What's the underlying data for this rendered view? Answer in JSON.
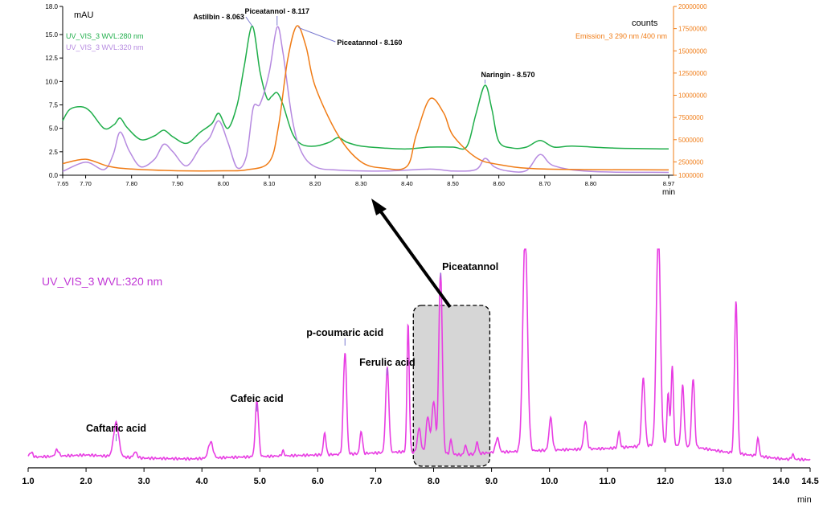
{
  "colors": {
    "green": "#1fae4a",
    "violet": "#b68ae0",
    "orange": "#f07c16",
    "magenta": "#e83ee3",
    "axis": "#000000",
    "selection_fill": "#d6d6d6"
  },
  "chart_data": [
    {
      "type": "line",
      "panel": "zoom",
      "xlim": [
        7.65,
        8.97
      ],
      "ylim": [
        0,
        18
      ],
      "y2lim": [
        1000000,
        20000000
      ],
      "x_ticks": [
        "7.65",
        "7.70",
        "7.80",
        "7.90",
        "8.00",
        "8.10",
        "8.20",
        "8.30",
        "8.40",
        "8.50",
        "8.60",
        "8.70",
        "8.80",
        "8.97"
      ],
      "y_ticks": [
        "0.0",
        "2.5",
        "5.0",
        "7.5",
        "10.0",
        "12.5",
        "15.0",
        "18.0"
      ],
      "y2_ticks": [
        "1000000",
        "2500000",
        "5000000",
        "7500000",
        "10000000",
        "12500000",
        "15000000",
        "17500000",
        "20000000"
      ],
      "xlabel": "min",
      "ylabel": "mAU",
      "y2label": "counts",
      "series": [
        {
          "name": "UV_VIS_3 WVL:280 nm",
          "axis": "left",
          "color": "green",
          "x": [
            7.65,
            7.665,
            7.69,
            7.71,
            7.74,
            7.762,
            7.775,
            7.79,
            7.82,
            7.85,
            7.87,
            7.89,
            7.92,
            7.95,
            7.975,
            7.99,
            8.01,
            8.03,
            8.045,
            8.063,
            8.08,
            8.095,
            8.105,
            8.117,
            8.13,
            8.15,
            8.17,
            8.2,
            8.23,
            8.25,
            8.27,
            8.3,
            8.35,
            8.4,
            8.45,
            8.5,
            8.53,
            8.55,
            8.57,
            8.585,
            8.6,
            8.63,
            8.66,
            8.69,
            8.72,
            8.76,
            8.85,
            8.97
          ],
          "y": [
            5.8,
            7.0,
            7.3,
            6.8,
            5.0,
            5.4,
            6.1,
            5.1,
            3.8,
            4.2,
            4.8,
            4.1,
            3.4,
            4.6,
            5.5,
            6.6,
            5.0,
            7.5,
            11.5,
            15.9,
            11.0,
            8.2,
            8.4,
            8.8,
            7.5,
            4.5,
            3.3,
            3.1,
            3.5,
            4.0,
            3.5,
            3.1,
            2.9,
            2.8,
            3.0,
            3.0,
            3.05,
            6.5,
            9.6,
            7.0,
            3.6,
            2.9,
            3.0,
            3.7,
            3.0,
            3.1,
            2.9,
            2.8
          ]
        },
        {
          "name": "UV_VIS_3 WVL:320 nm",
          "axis": "left",
          "color": "violet",
          "x": [
            7.65,
            7.7,
            7.74,
            7.76,
            7.775,
            7.795,
            7.82,
            7.85,
            7.87,
            7.89,
            7.92,
            7.95,
            7.97,
            7.99,
            8.01,
            8.03,
            8.05,
            8.065,
            8.08,
            8.1,
            8.117,
            8.13,
            8.15,
            8.17,
            8.2,
            8.25,
            8.35,
            8.45,
            8.5,
            8.55,
            8.57,
            8.59,
            8.62,
            8.66,
            8.69,
            8.72,
            8.8,
            8.97
          ],
          "y": [
            0.4,
            1.4,
            0.6,
            2.2,
            4.6,
            2.6,
            0.9,
            1.7,
            3.3,
            2.5,
            1.0,
            3.0,
            4.0,
            5.8,
            3.5,
            0.8,
            2.0,
            7.2,
            7.6,
            11.0,
            15.8,
            13.0,
            6.0,
            2.5,
            0.9,
            0.55,
            0.45,
            0.65,
            0.45,
            0.6,
            1.8,
            0.9,
            0.45,
            0.5,
            2.2,
            1.0,
            0.4,
            0.3
          ]
        },
        {
          "name": "Emission_3 290 nm /400 nm",
          "axis": "right",
          "color": "orange",
          "x": [
            7.65,
            7.7,
            7.75,
            7.8,
            7.9,
            8.0,
            8.05,
            8.1,
            8.12,
            8.14,
            8.16,
            8.18,
            8.2,
            8.25,
            8.3,
            8.35,
            8.4,
            8.42,
            8.45,
            8.48,
            8.5,
            8.55,
            8.6,
            8.7,
            8.97
          ],
          "y": [
            2300000,
            2800000,
            2000000,
            1700000,
            1500000,
            1500000,
            1600000,
            2500000,
            6500000,
            14000000,
            17800000,
            15500000,
            11000000,
            5500000,
            2500000,
            1800000,
            2000000,
            5500000,
            9600000,
            8000000,
            5500000,
            3000000,
            2200000,
            1700000,
            1600000
          ]
        }
      ],
      "annotations": [
        {
          "text": "Astilbin - 8.063",
          "x": 8.063,
          "y": 15.9
        },
        {
          "text": "Piceatannol - 8.117",
          "x": 8.117,
          "y": 15.8
        },
        {
          "text": "Piceatannol - 8.160",
          "x": 8.16,
          "y": 15.4
        },
        {
          "text": "Naringin - 8.570",
          "x": 8.57,
          "y": 9.6
        }
      ],
      "legend": "top-left / top-right"
    },
    {
      "type": "line",
      "panel": "full",
      "xlim": [
        1.0,
        14.5
      ],
      "x_ticks": [
        "1.0",
        "2.0",
        "3.0",
        "4.0",
        "5.0",
        "6.0",
        "7.0",
        "8.0",
        "9.0",
        "10.0",
        "11.0",
        "12.0",
        "13.0",
        "14.0",
        "14.5"
      ],
      "xlabel": "min",
      "baseline": 0,
      "series": [
        {
          "name": "UV_VIS_3 WVL:320 nm",
          "color": "magenta",
          "baseline": [
            [
              1.0,
              9
            ],
            [
              2.0,
              12
            ],
            [
              3.0,
              8
            ],
            [
              3.8,
              7
            ],
            [
              4.5,
              9
            ],
            [
              5.5,
              11
            ],
            [
              6.5,
              13
            ],
            [
              7.5,
              16
            ],
            [
              8.5,
              12
            ],
            [
              9.0,
              15
            ],
            [
              10.0,
              18
            ],
            [
              11.0,
              20
            ],
            [
              12.0,
              25
            ],
            [
              12.5,
              22
            ],
            [
              13.0,
              16
            ],
            [
              14.0,
              7
            ],
            [
              14.5,
              6
            ]
          ],
          "peaks": [
            {
              "x": 1.05,
              "h": 6,
              "w": 0.03
            },
            {
              "x": 1.5,
              "h": 8,
              "w": 0.03
            },
            {
              "x": 2.52,
              "h": 42,
              "w": 0.045
            },
            {
              "x": 2.85,
              "h": 7,
              "w": 0.03
            },
            {
              "x": 4.15,
              "h": 20,
              "w": 0.04
            },
            {
              "x": 4.95,
              "h": 70,
              "w": 0.028
            },
            {
              "x": 5.4,
              "h": 6,
              "w": 0.02
            },
            {
              "x": 6.12,
              "h": 27,
              "w": 0.022
            },
            {
              "x": 6.47,
              "h": 127,
              "w": 0.028
            },
            {
              "x": 6.75,
              "h": 28,
              "w": 0.022
            },
            {
              "x": 7.2,
              "h": 105,
              "w": 0.028
            },
            {
              "x": 7.56,
              "h": 160,
              "w": 0.02
            },
            {
              "x": 7.75,
              "h": 30,
              "w": 0.03
            },
            {
              "x": 7.9,
              "h": 45,
              "w": 0.03
            },
            {
              "x": 8.0,
              "h": 65,
              "w": 0.03
            },
            {
              "x": 8.12,
              "h": 225,
              "w": 0.03
            },
            {
              "x": 8.3,
              "h": 18,
              "w": 0.02
            },
            {
              "x": 8.55,
              "h": 12,
              "w": 0.02
            },
            {
              "x": 8.75,
              "h": 15,
              "w": 0.02
            },
            {
              "x": 9.1,
              "h": 18,
              "w": 0.03
            },
            {
              "x": 9.58,
              "h": 270,
              "w": 0.04
            },
            {
              "x": 10.02,
              "h": 40,
              "w": 0.028
            },
            {
              "x": 10.62,
              "h": 35,
              "w": 0.028
            },
            {
              "x": 11.2,
              "h": 20,
              "w": 0.02
            },
            {
              "x": 11.62,
              "h": 85,
              "w": 0.028
            },
            {
              "x": 11.88,
              "h": 270,
              "w": 0.035
            },
            {
              "x": 12.05,
              "h": 65,
              "w": 0.02
            },
            {
              "x": 12.12,
              "h": 100,
              "w": 0.02
            },
            {
              "x": 12.3,
              "h": 75,
              "w": 0.025
            },
            {
              "x": 12.48,
              "h": 85,
              "w": 0.025
            },
            {
              "x": 13.22,
              "h": 190,
              "w": 0.025
            },
            {
              "x": 13.6,
              "h": 22,
              "w": 0.02
            },
            {
              "x": 14.2,
              "h": 6,
              "w": 0.02
            }
          ]
        }
      ],
      "annotations": [
        {
          "text": "Caftaric acid",
          "x": 2.52
        },
        {
          "text": "Cafeic acid",
          "x": 4.95
        },
        {
          "text": "p-coumaric acid",
          "x": 6.47
        },
        {
          "text": "Ferulic acid",
          "x": 7.2
        },
        {
          "text": "Piceatannol",
          "x": 8.12
        }
      ],
      "selection_range": [
        7.65,
        8.97
      ]
    }
  ]
}
